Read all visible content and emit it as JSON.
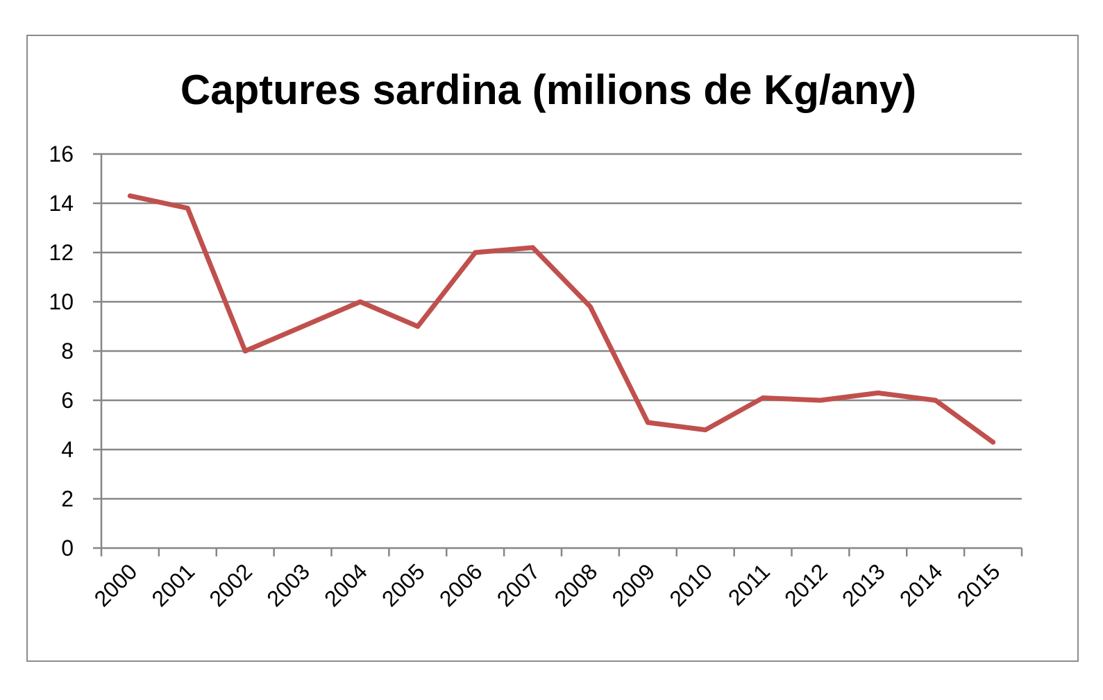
{
  "chart_data": {
    "type": "line",
    "title": "Captures sardina (milions de Kg/any)",
    "xlabel": "",
    "ylabel": "",
    "categories": [
      "2000",
      "2001",
      "2002",
      "2003",
      "2004",
      "2005",
      "2006",
      "2007",
      "2008",
      "2009",
      "2010",
      "2011",
      "2012",
      "2013",
      "2014",
      "2015"
    ],
    "series": [
      {
        "values": [
          14.3,
          13.8,
          8.0,
          9.0,
          10.0,
          9.0,
          12.0,
          12.2,
          9.8,
          5.1,
          4.8,
          6.1,
          6.0,
          6.3,
          6.0,
          4.3
        ],
        "color": "#c0504d"
      }
    ],
    "ylim": [
      0,
      16
    ],
    "yticks": [
      "0",
      "2",
      "4",
      "6",
      "8",
      "10",
      "12",
      "14",
      "16"
    ],
    "grid": true,
    "legend": "none"
  }
}
